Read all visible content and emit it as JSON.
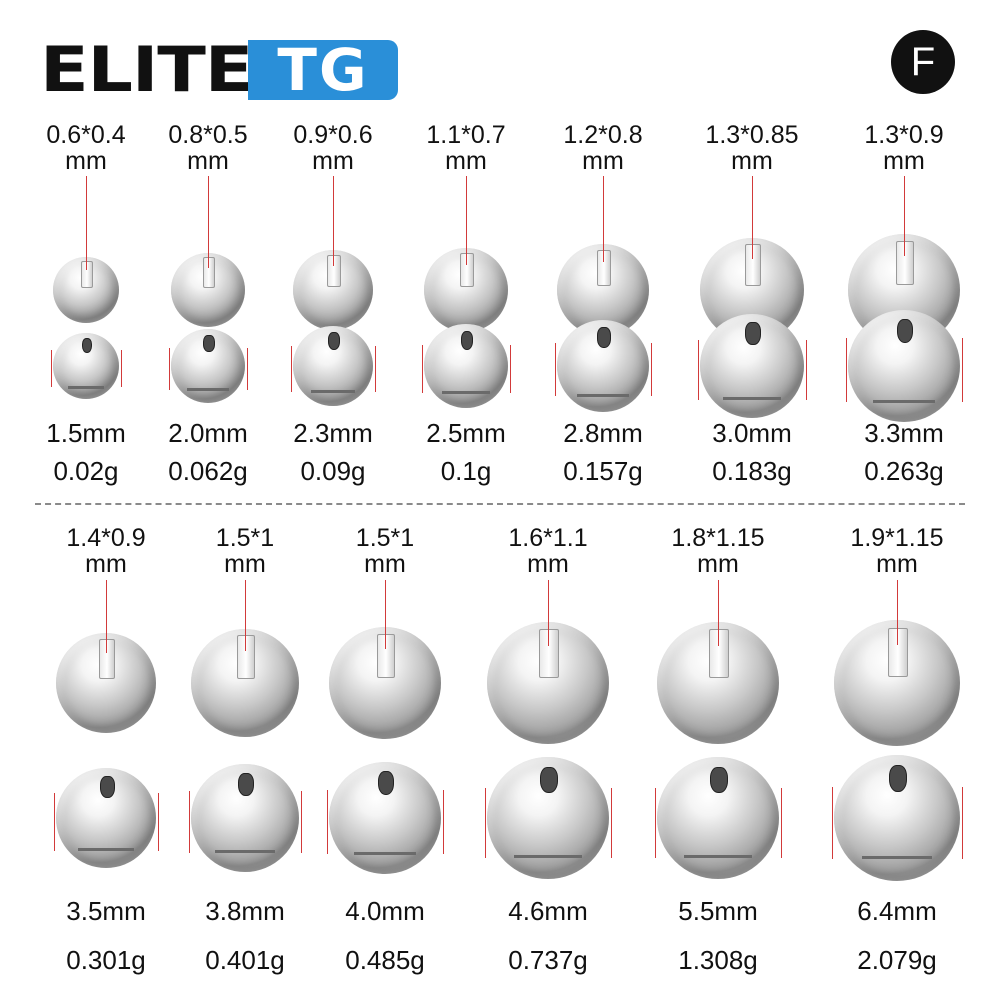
{
  "brand": {
    "name_part1": "ELITE",
    "name_part2": "TG",
    "accent": "#2a8fd8"
  },
  "badge": "F",
  "rows": [
    {
      "items": [
        {
          "hole": "0.6*0.4",
          "unit": "mm",
          "size": "1.5mm",
          "weight": "0.02g"
        },
        {
          "hole": "0.8*0.5",
          "unit": "mm",
          "size": "2.0mm",
          "weight": "0.062g"
        },
        {
          "hole": "0.9*0.6",
          "unit": "mm",
          "size": "2.3mm",
          "weight": "0.09g"
        },
        {
          "hole": "1.1*0.7",
          "unit": "mm",
          "size": "2.5mm",
          "weight": "0.1g"
        },
        {
          "hole": "1.2*0.8",
          "unit": "mm",
          "size": "2.8mm",
          "weight": "0.157g"
        },
        {
          "hole": "1.3*0.85",
          "unit": "mm",
          "size": "3.0mm",
          "weight": "0.183g"
        },
        {
          "hole": "1.3*0.9",
          "unit": "mm",
          "size": "3.3mm",
          "weight": "0.263g"
        }
      ]
    },
    {
      "items": [
        {
          "hole": "1.4*0.9",
          "unit": "mm",
          "size": "3.5mm",
          "weight": "0.301g"
        },
        {
          "hole": "1.5*1",
          "unit": "mm",
          "size": "3.8mm",
          "weight": "0.401g"
        },
        {
          "hole": "1.5*1",
          "unit": "mm",
          "size": "4.0mm",
          "weight": "0.485g"
        },
        {
          "hole": "1.6*1.1",
          "unit": "mm",
          "size": "4.6mm",
          "weight": "0.737g"
        },
        {
          "hole": "1.8*1.15",
          "unit": "mm",
          "size": "5.5mm",
          "weight": "1.308g"
        },
        {
          "hole": "1.9*1.15",
          "unit": "mm",
          "size": "6.4mm",
          "weight": "2.079g"
        }
      ]
    }
  ]
}
